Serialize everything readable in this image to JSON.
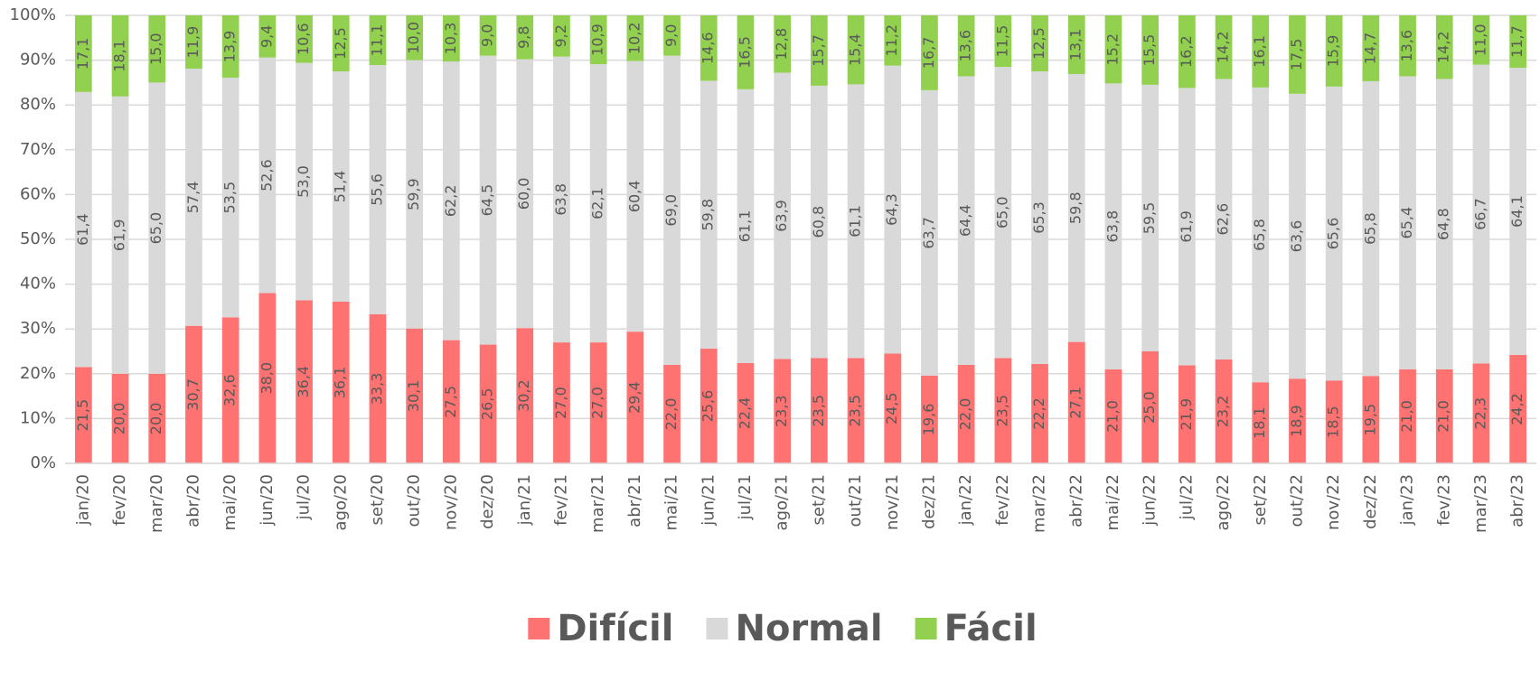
{
  "chart_data": {
    "type": "stacked_bar_100",
    "categories": [
      "jan/20",
      "fev/20",
      "mar/20",
      "abr/20",
      "mai/20",
      "jun/20",
      "jul/20",
      "ago/20",
      "set/20",
      "out/20",
      "nov/20",
      "dez/20",
      "jan/21",
      "fev/21",
      "mar/21",
      "abr/21",
      "mai/21",
      "jun/21",
      "jul/21",
      "ago/21",
      "set/21",
      "out/21",
      "nov/21",
      "dez/21",
      "jan/22",
      "fev/22",
      "mar/22",
      "abr/22",
      "mai/22",
      "jun/22",
      "jul/22",
      "ago/22",
      "set/22",
      "out/22",
      "nov/22",
      "dez/22",
      "jan/23",
      "fev/23",
      "mar/23",
      "abr/23"
    ],
    "series": [
      {
        "name": "Difícil",
        "color": "#ff7272",
        "values": [
          21.5,
          20.0,
          20.0,
          30.7,
          32.6,
          38.0,
          36.4,
          36.1,
          33.3,
          30.1,
          27.5,
          26.5,
          30.2,
          27.0,
          27.0,
          29.4,
          22.0,
          25.6,
          22.4,
          23.3,
          23.5,
          23.5,
          24.5,
          19.6,
          22.0,
          23.5,
          22.2,
          27.1,
          21.0,
          25.0,
          21.9,
          23.2,
          18.1,
          18.9,
          18.5,
          19.5,
          21.0,
          21.0,
          22.3,
          24.2
        ],
        "value_labels": [
          "21,5",
          "20,0",
          "20,0",
          "30,7",
          "32,6",
          "38,0",
          "36,4",
          "36,1",
          "33,3",
          "30,1",
          "27,5",
          "26,5",
          "30,2",
          "27,0",
          "27,0",
          "29,4",
          "22,0",
          "25,6",
          "22,4",
          "23,3",
          "23,5",
          "23,5",
          "24,5",
          "19,6",
          "22,0",
          "23,5",
          "22,2",
          "27,1",
          "21,0",
          "25,0",
          "21,9",
          "23,2",
          "18,1",
          "18,9",
          "18,5",
          "19,5",
          "21,0",
          "21,0",
          "22,3",
          "24,2"
        ]
      },
      {
        "name": "Normal",
        "color": "#d9d9d9",
        "values": [
          61.4,
          61.9,
          65.0,
          57.4,
          53.5,
          52.6,
          53.0,
          51.4,
          55.6,
          59.9,
          62.2,
          64.5,
          60.0,
          63.8,
          62.1,
          60.4,
          69.0,
          59.8,
          61.1,
          63.9,
          60.8,
          61.1,
          64.3,
          63.7,
          64.4,
          65.0,
          65.3,
          59.8,
          63.8,
          59.5,
          61.9,
          62.6,
          65.8,
          63.6,
          65.6,
          65.8,
          65.4,
          64.8,
          66.7,
          64.1
        ],
        "value_labels": [
          "61,4",
          "61,9",
          "65,0",
          "57,4",
          "53,5",
          "52,6",
          "53,0",
          "51,4",
          "55,6",
          "59,9",
          "62,2",
          "64,5",
          "60,0",
          "63,8",
          "62,1",
          "60,4",
          "69,0",
          "59,8",
          "61,1",
          "63,9",
          "60,8",
          "61,1",
          "64,3",
          "63,7",
          "64,4",
          "65,0",
          "65,3",
          "59,8",
          "63,8",
          "59,5",
          "61,9",
          "62,6",
          "65,8",
          "63,6",
          "65,6",
          "65,8",
          "65,4",
          "64,8",
          "66,7",
          "64,1"
        ]
      },
      {
        "name": "Fácil",
        "color": "#92d050",
        "values": [
          17.1,
          18.1,
          15.0,
          11.9,
          13.9,
          9.4,
          10.6,
          12.5,
          11.1,
          10.0,
          10.3,
          9.0,
          9.8,
          9.2,
          10.9,
          10.2,
          9.0,
          14.6,
          16.5,
          12.8,
          15.7,
          15.4,
          11.2,
          16.7,
          13.6,
          11.5,
          12.5,
          13.1,
          15.2,
          15.5,
          16.2,
          14.2,
          16.1,
          17.5,
          15.9,
          14.7,
          13.6,
          14.2,
          11.0,
          11.7
        ],
        "value_labels": [
          "17,1",
          "18,1",
          "15,0",
          "11,9",
          "13,9",
          "9,4",
          "10,6",
          "12,5",
          "11,1",
          "10,0",
          "10,3",
          "9,0",
          "9,8",
          "9,2",
          "10,9",
          "10,2",
          "9,0",
          "14,6",
          "16,5",
          "12,8",
          "15,7",
          "15,4",
          "11,2",
          "16,7",
          "13,6",
          "11,5",
          "12,5",
          "13,1",
          "15,2",
          "15,5",
          "16,2",
          "14,2",
          "16,1",
          "17,5",
          "15,9",
          "14,7",
          "13,6",
          "14,2",
          "11,0",
          "11,7"
        ]
      }
    ],
    "ylim": [
      0,
      100
    ],
    "yticks": [
      {
        "value": 0,
        "label": "0%"
      },
      {
        "value": 10,
        "label": "10%"
      },
      {
        "value": 20,
        "label": "20%"
      },
      {
        "value": 30,
        "label": "30%"
      },
      {
        "value": 40,
        "label": "40%"
      },
      {
        "value": 50,
        "label": "50%"
      },
      {
        "value": 60,
        "label": "60%"
      },
      {
        "value": 70,
        "label": "70%"
      },
      {
        "value": 80,
        "label": "80%"
      },
      {
        "value": 90,
        "label": "90%"
      },
      {
        "value": 100,
        "label": "100%"
      }
    ],
    "grid": true,
    "legend": "bottom"
  }
}
